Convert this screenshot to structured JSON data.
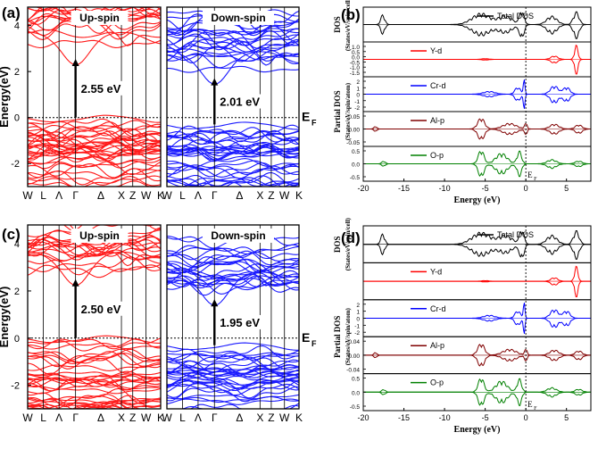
{
  "figure": {
    "panels": {
      "a": {
        "label": "(a)"
      },
      "b": {
        "label": "(b)"
      },
      "c": {
        "label": "(c)"
      },
      "d": {
        "label": "(d)"
      }
    }
  },
  "colors": {
    "up": "#ff1a1a",
    "down": "#1a1aff",
    "total": "#000000",
    "y_d": "#ff0000",
    "cr_d": "#0000ff",
    "al_p": "#800000",
    "o_p": "#008000"
  },
  "chart_data": [
    {
      "id": "a",
      "type": "line",
      "title": "",
      "subtype": "band-structure",
      "ylabel": "Energy(eV)",
      "ylim": [
        -3,
        4.8
      ],
      "yticks": [
        -2,
        0,
        2,
        4
      ],
      "kpath": [
        "W",
        "L",
        "Λ",
        "Γ",
        "Δ",
        "X",
        "Z",
        "W",
        "K"
      ],
      "fermi_label": "E",
      "fermi_sub": "F",
      "series": [
        {
          "name": "Up-spin",
          "label": "Up-spin",
          "gap_label": "2.55 eV",
          "vbm": 0.0,
          "cbm": 2.55,
          "gap": 2.55
        },
        {
          "name": "Down-spin",
          "label": "Down-spin",
          "gap_label": "2.01 eV",
          "vbm": -0.3,
          "cbm": 1.71,
          "gap": 2.01
        }
      ]
    },
    {
      "id": "b",
      "type": "line",
      "subtype": "density-of-states",
      "xlabel": "Energy (eV)",
      "xlim": [
        -20,
        8
      ],
      "xticks": [
        -20,
        -15,
        -10,
        -5,
        0,
        5
      ],
      "ylabel_top": "DOS",
      "ylabel_top_units": "(States/eV/spin/cell)",
      "ylabel_bottom": "Partial DOS",
      "ylabel_bottom_units": "(States/eV/spin/atom)",
      "fermi_label": "E",
      "fermi_sub": "F",
      "series": [
        {
          "name": "Total DOS",
          "legend": "Total DOS",
          "ylim": [
            -25,
            25
          ],
          "yticks": []
        },
        {
          "name": "Y-d",
          "legend": "Y-d",
          "ylim": [
            -1.5,
            1.0
          ],
          "yticks": [
            "1.0",
            "0.5",
            "0.0",
            "-0.5",
            "-1.0",
            "-1.5"
          ]
        },
        {
          "name": "Cr-d",
          "legend": "Cr-d",
          "ylim": [
            -2,
            2
          ],
          "yticks": [
            "2",
            "1",
            "0",
            "-1",
            "-2"
          ]
        },
        {
          "name": "Al-p",
          "legend": "Al-p",
          "ylim": [
            -0.05,
            0.05
          ],
          "yticks": [
            "0.05",
            "0.00",
            "-0.05"
          ]
        },
        {
          "name": "O-p",
          "legend": "O-p",
          "ylim": [
            -0.6,
            0.6
          ],
          "yticks": [
            "0.5",
            "0.0",
            "-0.5"
          ]
        }
      ]
    },
    {
      "id": "c",
      "type": "line",
      "subtype": "band-structure",
      "ylabel": "Energy(eV)",
      "ylim": [
        -3,
        4.8
      ],
      "yticks": [
        -2,
        0,
        2,
        4
      ],
      "kpath": [
        "W",
        "L",
        "Λ",
        "Γ",
        "Δ",
        "X",
        "Z",
        "W",
        "K"
      ],
      "fermi_label": "E",
      "fermi_sub": "F",
      "series": [
        {
          "name": "Up-spin",
          "label": "Up-spin",
          "gap_label": "2.50 eV",
          "vbm": 0.0,
          "cbm": 2.5,
          "gap": 2.5
        },
        {
          "name": "Down-spin",
          "label": "Down-spin",
          "gap_label": "1.95 eV",
          "vbm": -0.3,
          "cbm": 1.65,
          "gap": 1.95
        }
      ]
    },
    {
      "id": "d",
      "type": "line",
      "subtype": "density-of-states",
      "xlabel": "Energy (eV)",
      "xlim": [
        -20,
        8
      ],
      "xticks": [
        -20,
        -15,
        -10,
        -5,
        0,
        5
      ],
      "ylabel_top": "DOS",
      "ylabel_top_units": "(States/eV/spin/cell)",
      "ylabel_bottom": "Partial DOS",
      "ylabel_bottom_units": "(States/eV/spin/atom)",
      "fermi_label": "E",
      "fermi_sub": "F",
      "series": [
        {
          "name": "Total DOS",
          "legend": "Total DOS",
          "ylim": [
            -25,
            25
          ],
          "yticks": []
        },
        {
          "name": "Y-d",
          "legend": "Y-d",
          "ylim": [
            -1.5,
            1.0
          ],
          "yticks": []
        },
        {
          "name": "Cr-d",
          "legend": "Cr-d",
          "ylim": [
            -2,
            2
          ],
          "yticks": [
            "2",
            "1",
            "0",
            "-1",
            "-2"
          ]
        },
        {
          "name": "Al-p",
          "legend": "Al-p",
          "ylim": [
            -0.05,
            0.05
          ],
          "yticks": [
            "0.04",
            "0.00",
            "-0.04"
          ]
        },
        {
          "name": "O-p",
          "legend": "O-p",
          "ylim": [
            -0.6,
            0.6
          ],
          "yticks": [
            "0.5",
            "0.0",
            "-0.5"
          ]
        }
      ]
    }
  ]
}
